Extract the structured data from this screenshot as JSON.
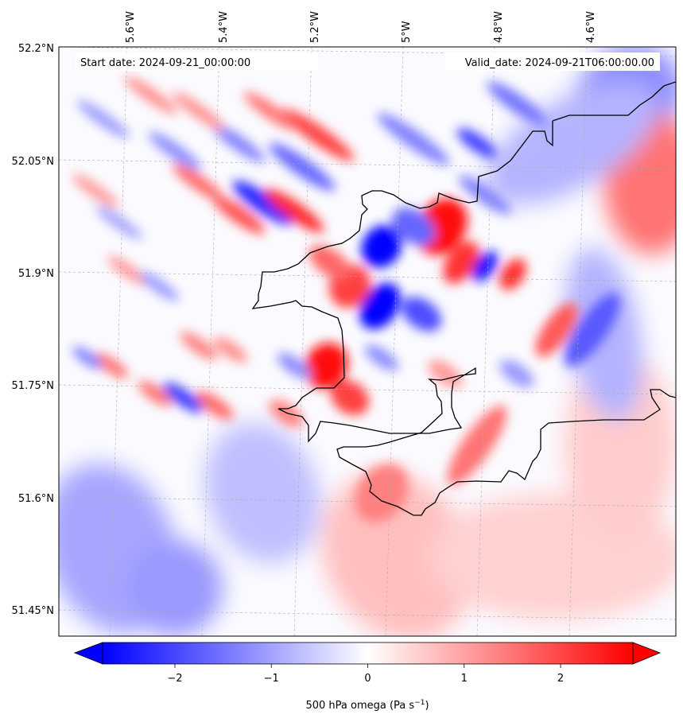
{
  "map": {
    "start_date": "Start date: 2024-09-21_00:00:00",
    "valid_date": "Valid_date: 2024-09-21T06:00:00.00",
    "lon_labels": [
      "5.6°W",
      "5.4°W",
      "5.2°W",
      "5°W",
      "4.8°W",
      "4.6°W"
    ],
    "lat_labels": [
      "52.2°N",
      "52.05°N",
      "51.9°N",
      "51.75°N",
      "51.6°N",
      "51.45°N"
    ]
  },
  "colorbar": {
    "ticks": [
      -2,
      -1,
      0,
      1,
      2
    ],
    "tick_labels": [
      "−2",
      "−1",
      "0",
      "1",
      "2"
    ],
    "range": [
      -2.75,
      2.75
    ],
    "label_main": "500 hPa omega (Pa s",
    "label_sup": "−1",
    "label_end": ")",
    "colormap": "bwr",
    "color_low": "#0000ff",
    "color_mid": "#ffffff",
    "color_high": "#ff0000",
    "extend": "both"
  },
  "coastline_color": "#000000"
}
